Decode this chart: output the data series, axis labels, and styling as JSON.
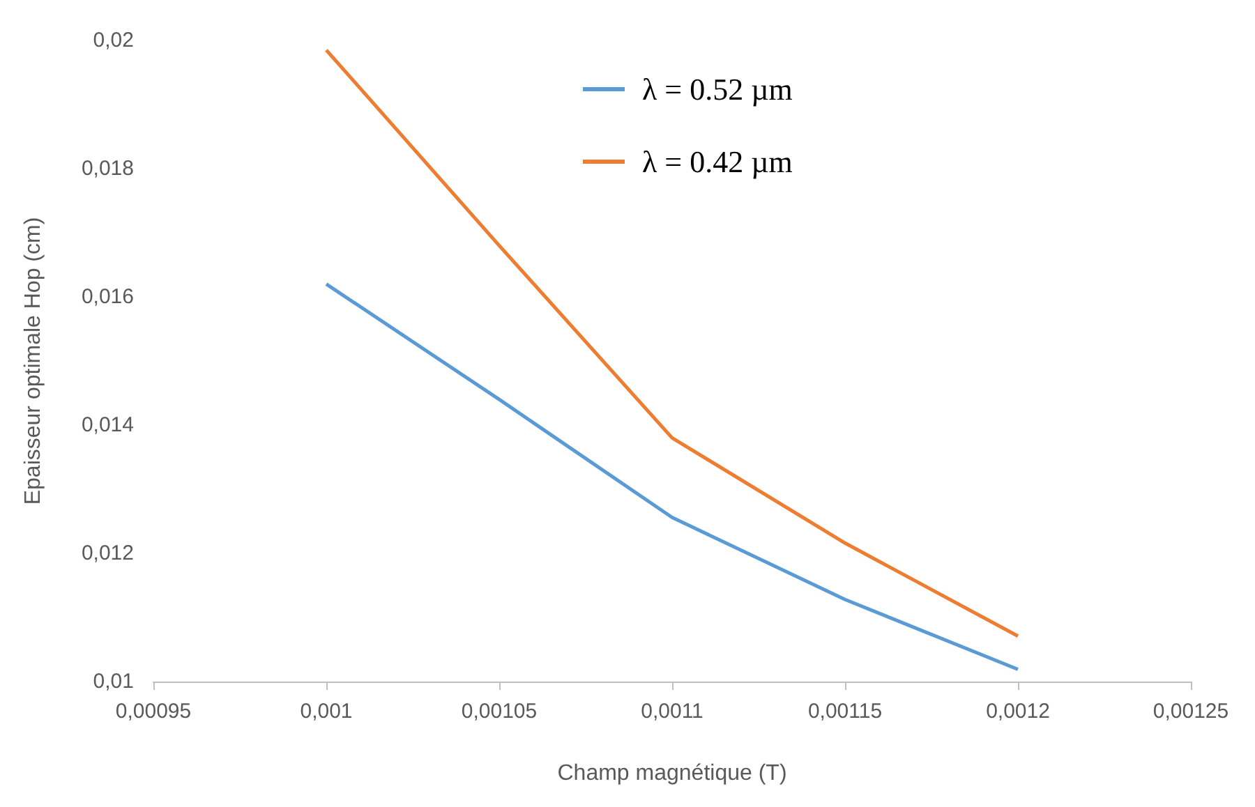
{
  "chart_data": {
    "type": "line",
    "xlabel": "Champ magnétique (T)",
    "ylabel": "Epaisseur optimale Hop (cm)",
    "x": [
      0.001,
      0.00105,
      0.0011,
      0.00115,
      0.0012
    ],
    "series": [
      {
        "name": "λ = 0.52 µm",
        "color": "#5b9bd5",
        "values": [
          0.0162,
          0.0144,
          0.01256,
          0.01128,
          0.01019
        ]
      },
      {
        "name": "λ = 0.42 µm",
        "color": "#ed7d31",
        "values": [
          0.01985,
          0.0168,
          0.0138,
          0.01216,
          0.01071
        ]
      }
    ],
    "xlim": [
      0.00095,
      0.00125
    ],
    "xticks": [
      {
        "value": 0.00095,
        "label": "0,00095"
      },
      {
        "value": 0.001,
        "label": "0,001"
      },
      {
        "value": 0.00105,
        "label": "0,00105"
      },
      {
        "value": 0.0011,
        "label": "0,0011"
      },
      {
        "value": 0.00115,
        "label": "0,00115"
      },
      {
        "value": 0.0012,
        "label": "0,0012"
      },
      {
        "value": 0.00125,
        "label": "0,00125"
      }
    ],
    "ylim": [
      0.01,
      0.02
    ],
    "yticks": [
      {
        "value": 0.01,
        "label": "0,01"
      },
      {
        "value": 0.012,
        "label": "0,012"
      },
      {
        "value": 0.014,
        "label": "0,014"
      },
      {
        "value": 0.016,
        "label": "0,016"
      },
      {
        "value": 0.018,
        "label": "0,018"
      },
      {
        "value": 0.02,
        "label": "0,02"
      }
    ],
    "grid": false,
    "legend": "top",
    "marker": "none",
    "line_style": "solid"
  }
}
